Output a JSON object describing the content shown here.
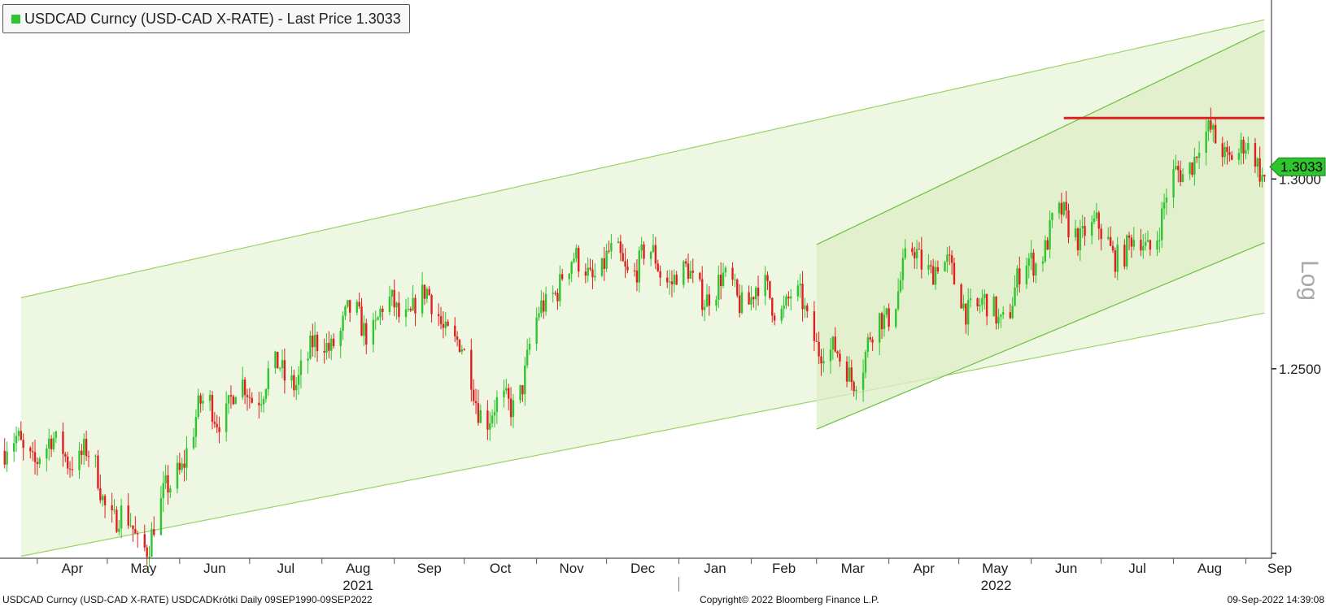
{
  "legend": {
    "label": "USDCAD Curncy (USD-CAD X-RATE) - Last Price 1.3033"
  },
  "footer": {
    "left": "USDCAD Curncy (USD-CAD X-RATE) USDCADKrótki  Daily 09SEP1990-09SEP2022",
    "center": "Copyright© 2022 Bloomberg Finance L.P.",
    "right": "09-Sep-2022 14:39:08"
  },
  "colors": {
    "up": "#2fc52f",
    "down": "#e02020",
    "channel_fill": "#eef7e2",
    "channel_line": "#9ad36a",
    "inner_channel_fill": "#ddeec6",
    "inner_channel_line": "#6cc13c",
    "resistance": "#e02020",
    "badge": "#2fc52f"
  },
  "chart_data": {
    "type": "candlestick",
    "title": "USDCAD Curncy (USD-CAD X-RATE) - Last Price 1.3033",
    "scale": "log",
    "y_axis_label": "Log",
    "y_ticks": [
      "1.3000",
      "1.2500"
    ],
    "last_price": "1.3033",
    "x_months": [
      "Apr",
      "May",
      "Jun",
      "Jul",
      "Aug",
      "Sep",
      "Oct",
      "Nov",
      "Dec",
      "Jan",
      "Feb",
      "Mar",
      "Apr",
      "May",
      "Jun",
      "Jul",
      "Aug",
      "Sep"
    ],
    "x_years": [
      "2021",
      "2022"
    ],
    "ylim": [
      1.202,
      1.349
    ],
    "monthly_closes": [
      {
        "period": "2021-04",
        "close": 1.229
      },
      {
        "period": "2021-05",
        "close": 1.207
      },
      {
        "period": "2021-06",
        "close": 1.24
      },
      {
        "period": "2021-07",
        "close": 1.248
      },
      {
        "period": "2021-08",
        "close": 1.262
      },
      {
        "period": "2021-09",
        "close": 1.267
      },
      {
        "period": "2021-10",
        "close": 1.238
      },
      {
        "period": "2021-11",
        "close": 1.276
      },
      {
        "period": "2021-12",
        "close": 1.278
      },
      {
        "period": "2022-01",
        "close": 1.271
      },
      {
        "period": "2022-02",
        "close": 1.268
      },
      {
        "period": "2022-03",
        "close": 1.25
      },
      {
        "period": "2022-04",
        "close": 1.279
      },
      {
        "period": "2022-05",
        "close": 1.264
      },
      {
        "period": "2022-06",
        "close": 1.288
      },
      {
        "period": "2022-07",
        "close": 1.281
      },
      {
        "period": "2022-08",
        "close": 1.31
      },
      {
        "period": "2022-09",
        "close": 1.303
      }
    ],
    "annotations": [
      {
        "type": "channel",
        "name": "outer",
        "start": {
          "period": "2021-03-25",
          "upper": 1.2685,
          "lower": 1.2025
        },
        "end": {
          "period": "2022-09-09",
          "upper": 1.3435,
          "lower": 1.2645
        }
      },
      {
        "type": "channel",
        "name": "inner",
        "start": {
          "period": "2022-03-01",
          "upper": 1.2825,
          "lower": 1.2345
        },
        "end": {
          "period": "2022-09-09",
          "upper": 1.3405,
          "lower": 1.283
        }
      },
      {
        "type": "hline",
        "name": "resistance",
        "value": 1.3165,
        "from": "2022-06-15",
        "to": "2022-09-09"
      }
    ]
  }
}
